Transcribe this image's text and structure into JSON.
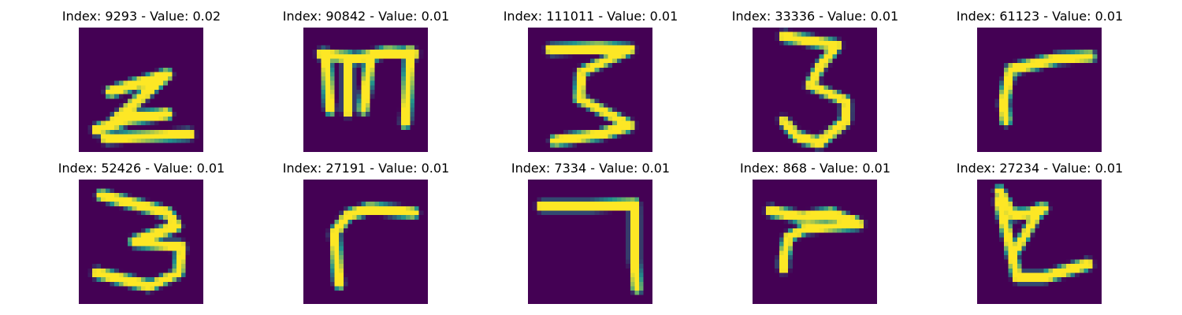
{
  "colors": {
    "background": "#440154",
    "stroke": "#fde725",
    "edge": "#21918c"
  },
  "panels": [
    {
      "title": "Index: 9293 - Value: 0.02",
      "strokes": [
        [
          [
            7,
            14.5
          ],
          [
            20,
            10.5
          ],
          [
            8,
            21
          ],
          [
            20,
            19.5
          ],
          [
            13,
            20
          ],
          [
            4,
            23
          ]
        ],
        [
          [
            6,
            25
          ],
          [
            25,
            24
          ]
        ]
      ]
    },
    {
      "title": "Index: 90842 - Value: 0.01",
      "strokes": [
        [
          [
            4,
            6
          ],
          [
            12,
            7
          ],
          [
            19,
            5.5
          ],
          [
            25,
            6
          ]
        ],
        [
          [
            5,
            6
          ],
          [
            6,
            18.5
          ]
        ],
        [
          [
            10,
            7
          ],
          [
            10,
            19
          ]
        ],
        [
          [
            15,
            7
          ],
          [
            13.5,
            18.5
          ]
        ],
        [
          [
            24,
            5.5
          ],
          [
            23,
            21.5
          ]
        ]
      ]
    },
    {
      "title": "Index: 111011 - Value: 0.01",
      "strokes": [
        [
          [
            5,
            5
          ],
          [
            16,
            4.5
          ],
          [
            23,
            5
          ],
          [
            12,
            10
          ],
          [
            11.5,
            16
          ],
          [
            23,
            22
          ],
          [
            16.5,
            24
          ],
          [
            6,
            25.5
          ]
        ]
      ]
    },
    {
      "title": "Index: 33336 - Value: 0.01",
      "strokes": [
        [
          [
            7,
            2
          ],
          [
            19,
            4
          ],
          [
            15,
            9
          ],
          [
            13,
            13
          ],
          [
            21,
            16.5
          ],
          [
            21,
            21
          ],
          [
            15,
            26
          ],
          [
            10,
            24.5
          ],
          [
            7,
            21
          ]
        ]
      ]
    },
    {
      "title": "Index: 61123 - Value: 0.01",
      "strokes": [
        [
          [
            25.5,
            6.5
          ],
          [
            18,
            7
          ],
          [
            7.5,
            9.5
          ],
          [
            6,
            17
          ],
          [
            6.5,
            21
          ]
        ]
      ]
    },
    {
      "title": "Index: 52426 - Value: 0.01",
      "strokes": [
        [
          [
            5,
            3.5
          ],
          [
            20,
            7.5
          ],
          [
            22,
            10.5
          ],
          [
            12.5,
            14
          ],
          [
            23,
            15
          ],
          [
            22.5,
            21
          ],
          [
            16,
            24
          ],
          [
            4,
            21
          ]
        ]
      ]
    },
    {
      "title": "Index: 27191 - Value: 0.01",
      "strokes": [
        [
          [
            8,
            23.5
          ],
          [
            7,
            12
          ],
          [
            10,
            8
          ],
          [
            15,
            6.5
          ],
          [
            25,
            7.5
          ]
        ]
      ]
    },
    {
      "title": "Index: 7334 - Value: 0.01",
      "strokes": [
        [
          [
            3,
            6
          ],
          [
            14,
            6
          ],
          [
            24,
            5.5
          ],
          [
            24,
            18
          ],
          [
            24.5,
            24.5
          ]
        ]
      ]
    },
    {
      "title": "Index: 868 - Value: 0.01",
      "strokes": [
        [
          [
            4,
            7
          ],
          [
            11,
            8.5
          ],
          [
            18,
            7.5
          ],
          [
            24,
            10
          ],
          [
            18,
            10.5
          ],
          [
            12,
            11
          ],
          [
            8,
            13
          ],
          [
            7,
            18
          ],
          [
            7,
            20
          ]
        ]
      ]
    },
    {
      "title": "Index: 27234 - Value: 0.01",
      "strokes": [
        [
          [
            5,
            2.5
          ],
          [
            8,
            8
          ],
          [
            12,
            7.5
          ],
          [
            15,
            6.5
          ]
        ],
        [
          [
            5,
            5
          ],
          [
            7,
            13
          ],
          [
            9,
            22
          ],
          [
            15,
            22
          ],
          [
            25,
            19
          ]
        ],
        [
          [
            14,
            7
          ],
          [
            9,
            15.5
          ]
        ]
      ]
    }
  ]
}
